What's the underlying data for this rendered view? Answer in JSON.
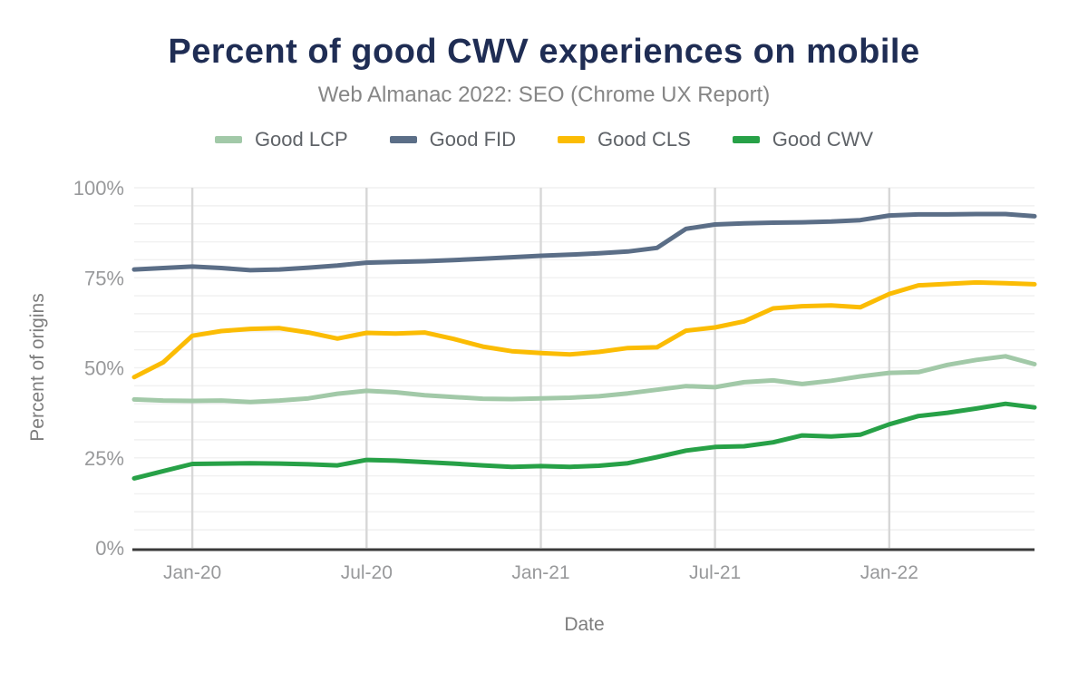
{
  "colors": {
    "title_text": "#1f2d54",
    "subtitle_text": "#868686",
    "legend_text": "#5f6368",
    "tick_text": "#98999b",
    "axis_title_text": "#7d7d7d",
    "axis_line": "#3a3a3a",
    "gridline_minor": "#f1f1f1",
    "gridline_vertical": "#d7d7d7",
    "background": "#ffffff"
  },
  "chart_data": {
    "type": "line",
    "title": "Percent of good CWV experiences on mobile",
    "subtitle": "Web Almanac 2022: SEO (Chrome UX Report)",
    "xlabel": "Date",
    "ylabel": "Percent of origins",
    "ylim": [
      0,
      100
    ],
    "grid": {
      "horizontal_minor_step_percent": 5,
      "vertical_gridlines_at_x_ticks": true
    },
    "legend_position": "top-center",
    "y_ticks": [
      {
        "label": "0%",
        "value": 0
      },
      {
        "label": "25%",
        "value": 25
      },
      {
        "label": "50%",
        "value": 50
      },
      {
        "label": "75%",
        "value": 75
      },
      {
        "label": "100%",
        "value": 100
      }
    ],
    "x": [
      "Nov-19",
      "Dec-19",
      "Jan-20",
      "Feb-20",
      "Mar-20",
      "Apr-20",
      "May-20",
      "Jun-20",
      "Jul-20",
      "Aug-20",
      "Sep-20",
      "Oct-20",
      "Nov-20",
      "Dec-20",
      "Jan-21",
      "Feb-21",
      "Mar-21",
      "Apr-21",
      "May-21",
      "Jun-21",
      "Jul-21",
      "Aug-21",
      "Sep-21",
      "Oct-21",
      "Nov-21",
      "Dec-21",
      "Jan-22",
      "Feb-22",
      "Mar-22",
      "Apr-22",
      "May-22",
      "Jun-22"
    ],
    "x_ticks": [
      {
        "label": "Jan-20",
        "index": 2
      },
      {
        "label": "Jul-20",
        "index": 8
      },
      {
        "label": "Jan-21",
        "index": 14
      },
      {
        "label": "Jul-21",
        "index": 20
      },
      {
        "label": "Jan-22",
        "index": 26
      }
    ],
    "series": [
      {
        "name": "Good LCP",
        "color": "#a2c9a8",
        "values": [
          41.2,
          40.9,
          40.8,
          40.9,
          40.5,
          40.9,
          41.5,
          42.8,
          43.6,
          43.2,
          42.4,
          41.9,
          41.4,
          41.3,
          41.5,
          41.7,
          42.1,
          42.9,
          43.9,
          44.9,
          44.6,
          46.0,
          46.5,
          45.5,
          46.4,
          47.6,
          48.6,
          48.8,
          50.8,
          52.2,
          53.2,
          51.0
        ]
      },
      {
        "name": "Good FID",
        "color": "#5b6e87",
        "values": [
          77.3,
          77.7,
          78.1,
          77.7,
          77.1,
          77.3,
          77.8,
          78.4,
          79.2,
          79.4,
          79.6,
          79.9,
          80.3,
          80.7,
          81.1,
          81.4,
          81.8,
          82.3,
          83.3,
          88.6,
          89.8,
          90.1,
          90.3,
          90.4,
          90.6,
          91.0,
          92.3,
          92.6,
          92.6,
          92.7,
          92.7,
          92.1
        ]
      },
      {
        "name": "Good CLS",
        "color": "#fbbc04",
        "values": [
          47.4,
          51.5,
          58.9,
          60.2,
          60.8,
          61.0,
          59.8,
          58.1,
          59.7,
          59.5,
          59.8,
          58.0,
          55.9,
          54.6,
          54.1,
          53.7,
          54.4,
          55.5,
          55.7,
          60.3,
          61.2,
          62.9,
          66.5,
          67.1,
          67.3,
          66.8,
          70.5,
          72.9,
          73.3,
          73.7,
          73.5,
          73.2
        ]
      },
      {
        "name": "Good CWV",
        "color": "#27a147",
        "values": [
          19.3,
          21.3,
          23.3,
          23.4,
          23.5,
          23.4,
          23.2,
          22.9,
          24.4,
          24.2,
          23.8,
          23.4,
          22.9,
          22.5,
          22.7,
          22.5,
          22.8,
          23.5,
          25.2,
          27.0,
          28.0,
          28.2,
          29.3,
          31.2,
          30.9,
          31.4,
          34.3,
          36.6,
          37.5,
          38.7,
          40.0,
          39.0
        ]
      }
    ]
  }
}
